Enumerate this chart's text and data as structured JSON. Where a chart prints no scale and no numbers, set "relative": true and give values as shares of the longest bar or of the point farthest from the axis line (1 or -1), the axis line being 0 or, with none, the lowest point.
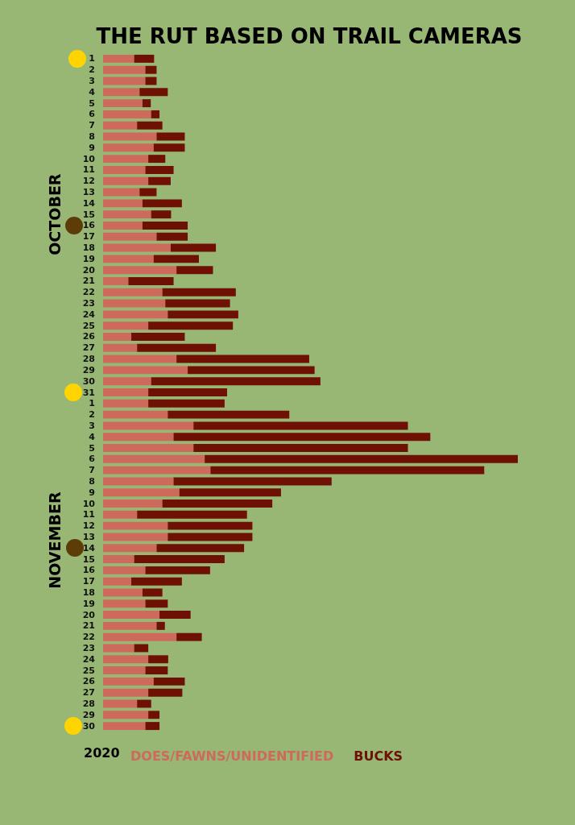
{
  "chart_data": {
    "type": "bar",
    "title": "THE RUT BASED ON TRAIL CAMERAS",
    "orientation": "horizontal",
    "stacked": true,
    "relative": true,
    "tick_labels": "y",
    "legend": "bottom left",
    "legend_title": "2020",
    "annotations": [
      "OCTOBER",
      "NOVEMBER"
    ],
    "categories": [
      "1",
      "2",
      "3",
      "4",
      "5",
      "6",
      "7",
      "8",
      "9",
      "10",
      "11",
      "12",
      "13",
      "14",
      "15",
      "16",
      "17",
      "18",
      "19",
      "20",
      "21",
      "22",
      "23",
      "24",
      "25",
      "26",
      "27",
      "28",
      "29",
      "30",
      "31",
      "1",
      "2",
      "3",
      "4",
      "5",
      "6",
      "7",
      "8",
      "9",
      "10",
      "11",
      "12",
      "13",
      "14",
      "15",
      "16",
      "17",
      "18",
      "19",
      "20",
      "21",
      "22",
      "23",
      "24",
      "25",
      "26",
      "27",
      "28",
      "29",
      "30"
    ],
    "series": [
      {
        "name": "DOES/FAWNS/UNIDENTIFIED",
        "color": "#cd6a5c",
        "values": [
          0.075,
          0.102,
          0.102,
          0.088,
          0.095,
          0.116,
          0.082,
          0.129,
          0.122,
          0.109,
          0.102,
          0.109,
          0.088,
          0.095,
          0.116,
          0.095,
          0.129,
          0.163,
          0.122,
          0.177,
          0.061,
          0.143,
          0.15,
          0.156,
          0.109,
          0.068,
          0.082,
          0.177,
          0.204,
          0.116,
          0.109,
          0.109,
          0.156,
          0.218,
          0.17,
          0.218,
          0.245,
          0.259,
          0.17,
          0.184,
          0.143,
          0.082,
          0.156,
          0.156,
          0.129,
          0.075,
          0.102,
          0.068,
          0.095,
          0.102,
          0.136,
          0.129,
          0.177,
          0.075,
          0.109,
          0.102,
          0.122,
          0.109,
          0.082,
          0.109,
          0.102
        ]
      },
      {
        "name": "BUCKS",
        "color": "#6e1004",
        "values": [
          0.048,
          0.027,
          0.027,
          0.068,
          0.02,
          0.02,
          0.061,
          0.068,
          0.075,
          0.041,
          0.068,
          0.054,
          0.041,
          0.095,
          0.048,
          0.109,
          0.075,
          0.109,
          0.109,
          0.088,
          0.109,
          0.177,
          0.156,
          0.17,
          0.204,
          0.129,
          0.19,
          0.32,
          0.306,
          0.408,
          0.19,
          0.184,
          0.293,
          0.517,
          0.619,
          0.517,
          0.755,
          0.66,
          0.381,
          0.245,
          0.265,
          0.265,
          0.204,
          0.204,
          0.211,
          0.218,
          0.156,
          0.122,
          0.048,
          0.054,
          0.075,
          0.02,
          0.061,
          0.034,
          0.048,
          0.054,
          0.075,
          0.082,
          0.034,
          0.027,
          0.034
        ]
      }
    ]
  }
}
